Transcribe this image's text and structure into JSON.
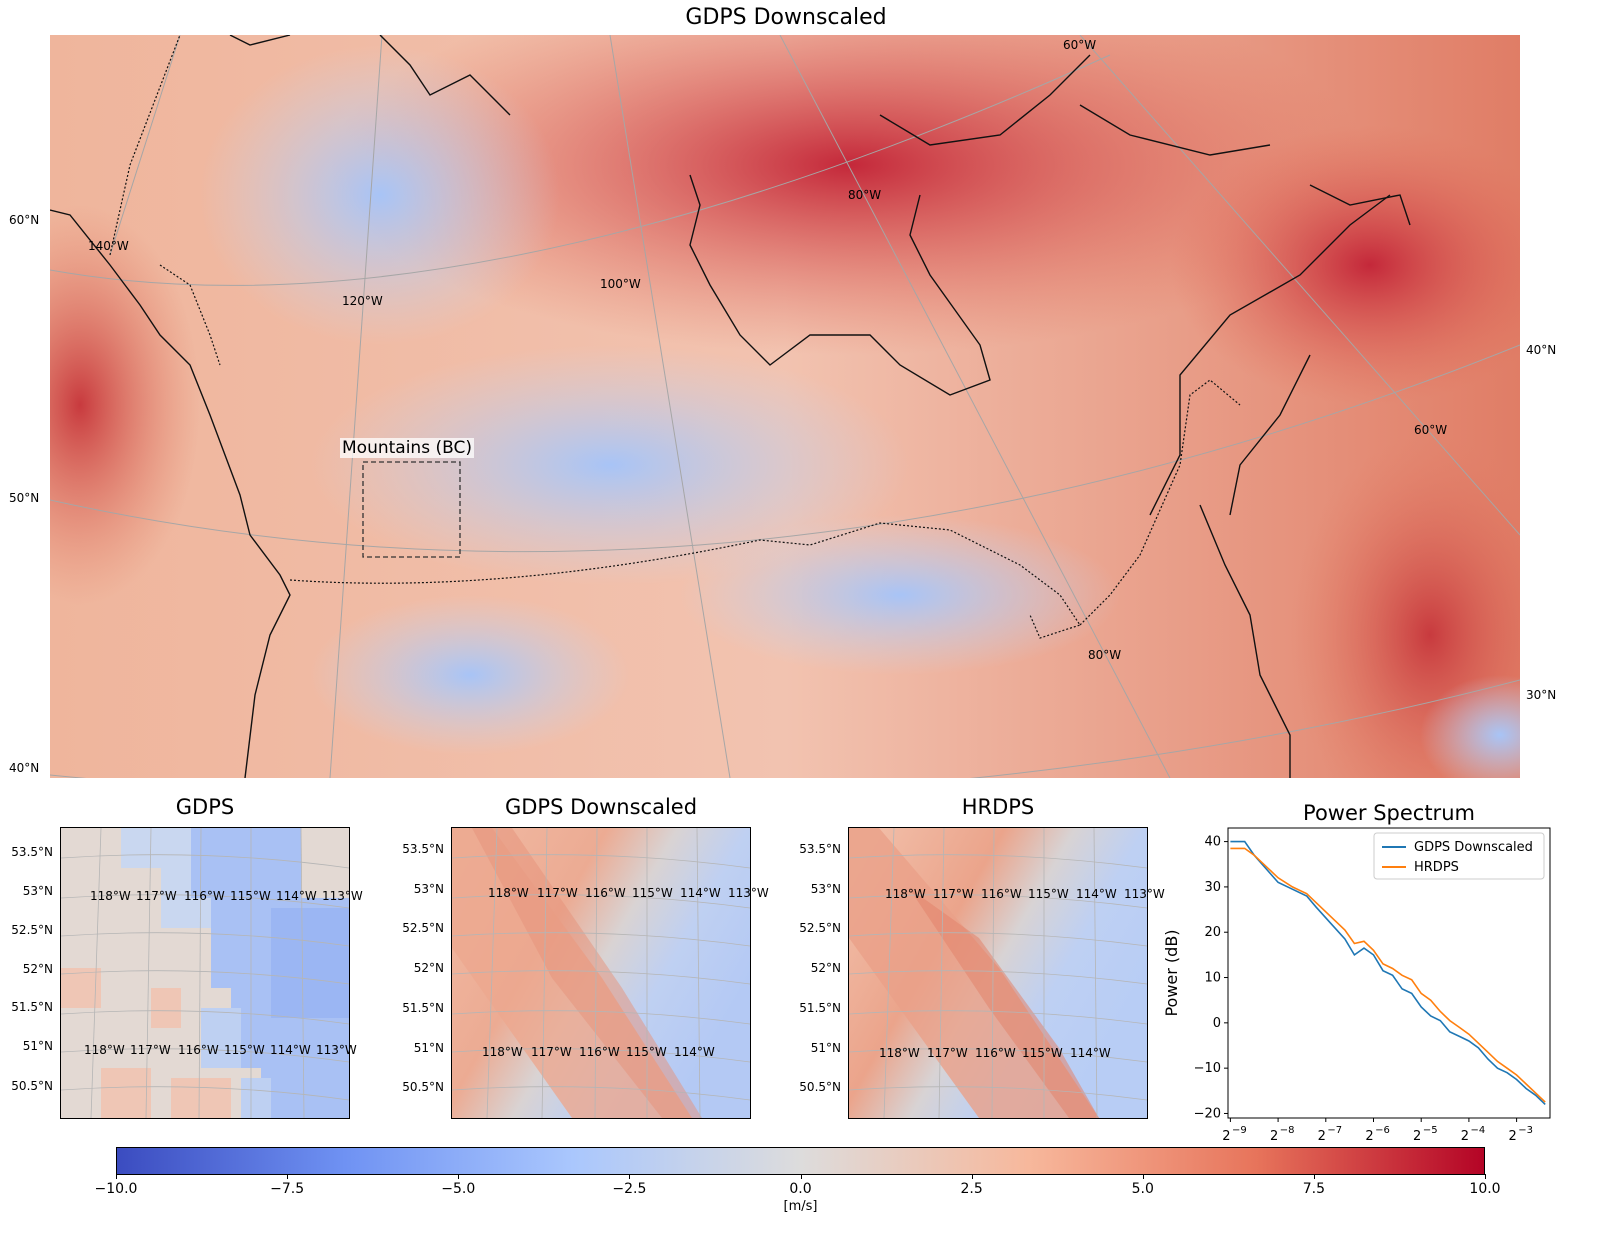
{
  "figure": {
    "main_title": "GDPS Downscaled",
    "region_label": "Mountains (BC)",
    "main_lat_labels": [
      "60°N",
      "50°N",
      "40°N"
    ],
    "main_lat_labels_right": [
      "40°N",
      "30°N"
    ],
    "main_lon_labels": [
      "140°W",
      "120°W",
      "100°W",
      "80°W",
      "60°W",
      "60°W",
      "80°W"
    ],
    "panels": [
      {
        "title": "GDPS",
        "lat_ticks": [
          "53.5°N",
          "53°N",
          "52.5°N",
          "52°N",
          "51.5°N",
          "51°N",
          "50.5°N"
        ],
        "lon_top": [
          "118°W",
          "117°W",
          "116°W",
          "115°W",
          "114°W",
          "113°W"
        ],
        "lon_bottom": [
          "118°W",
          "117°W",
          "116°W",
          "115°W",
          "114°W",
          "113°W"
        ]
      },
      {
        "title": "GDPS Downscaled",
        "lat_ticks": [
          "53.5°N",
          "53°N",
          "52.5°N",
          "52°N",
          "51.5°N",
          "51°N",
          "50.5°N"
        ],
        "lon_top": [
          "118°W",
          "117°W",
          "116°W",
          "115°W",
          "114°W",
          "113°W"
        ],
        "lon_bottom": [
          "118°W",
          "117°W",
          "116°W",
          "115°W",
          "114°W"
        ]
      },
      {
        "title": "HRDPS",
        "lat_ticks": [
          "53.5°N",
          "53°N",
          "52.5°N",
          "52°N",
          "51.5°N",
          "51°N",
          "50.5°N"
        ],
        "lon_top": [
          "118°W",
          "117°W",
          "116°W",
          "115°W",
          "114°W",
          "113°W"
        ],
        "lon_bottom": [
          "118°W",
          "117°W",
          "116°W",
          "115°W",
          "114°W"
        ]
      }
    ],
    "colorbar": {
      "ticks": [
        "−10.0",
        "−7.5",
        "−5.0",
        "−2.5",
        "0.0",
        "2.5",
        "5.0",
        "7.5",
        "10.0"
      ],
      "min": -10,
      "max": 10,
      "label": "[m/s]",
      "colormap": [
        "#3b4cc0",
        "#6f92f3",
        "#aac7fd",
        "#dddcdc",
        "#f7b89c",
        "#e7745b",
        "#b40426"
      ]
    }
  },
  "chart_data": {
    "type": "line",
    "title": "Power Spectrum",
    "xlabel": "",
    "ylabel": "Power (dB)",
    "xscale": "log2",
    "xlim": [
      -9.05,
      -2.3
    ],
    "ylim": [
      -21,
      43
    ],
    "xtick_exponents": [
      "−9",
      "−8",
      "−7",
      "−6",
      "−5",
      "−4",
      "−3"
    ],
    "xtick_values": [
      -9,
      -8,
      -7,
      -6,
      -5,
      -4,
      -3
    ],
    "yticks": [
      -20,
      -10,
      0,
      10,
      20,
      30,
      40
    ],
    "legend_position": "top-right",
    "x_log2": [
      -9.0,
      -8.7,
      -8.5,
      -8.0,
      -7.7,
      -7.4,
      -7.2,
      -6.9,
      -6.6,
      -6.4,
      -6.2,
      -6.0,
      -5.8,
      -5.6,
      -5.4,
      -5.2,
      -5.0,
      -4.8,
      -4.6,
      -4.4,
      -4.2,
      -4.0,
      -3.8,
      -3.6,
      -3.4,
      -3.2,
      -3.0,
      -2.8,
      -2.6,
      -2.4
    ],
    "series": [
      {
        "name": "GDPS Downscaled",
        "color": "#1f77b4",
        "values": [
          40,
          40,
          37,
          31,
          29.5,
          28,
          25.5,
          22,
          18.5,
          15,
          16.5,
          15,
          11.5,
          10.5,
          7.5,
          6.5,
          3.5,
          1.5,
          0.5,
          -2,
          -3,
          -4,
          -5.5,
          -8,
          -10,
          -11,
          -12.5,
          -14.5,
          -16,
          -18
        ]
      },
      {
        "name": "HRDPS",
        "color": "#ff7f0e",
        "values": [
          38.5,
          38.5,
          37,
          32,
          30,
          28.5,
          26.5,
          23.5,
          20.5,
          17.5,
          18,
          16,
          13,
          12,
          10.5,
          9.5,
          6.5,
          5,
          2.5,
          0.5,
          -1,
          -2.5,
          -4.5,
          -6.5,
          -8.5,
          -10,
          -11.5,
          -13.5,
          -15.5,
          -17.5
        ]
      }
    ]
  }
}
